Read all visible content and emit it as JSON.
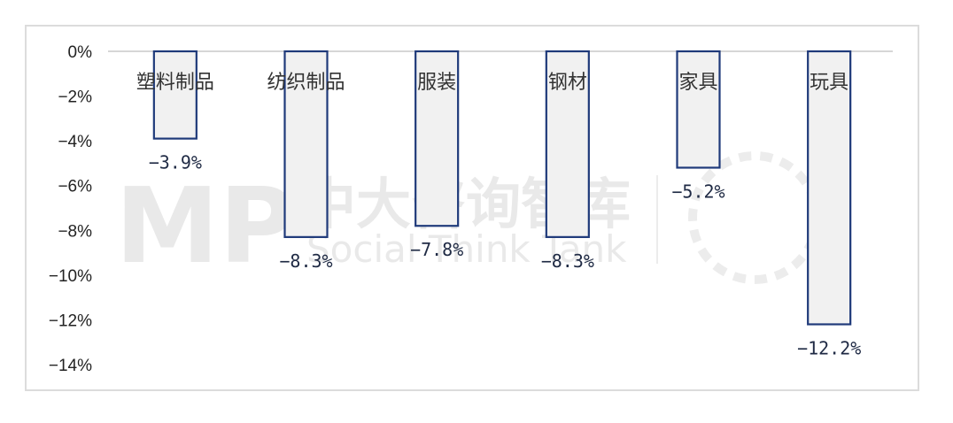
{
  "chart_data": {
    "type": "bar",
    "categories": [
      "塑料制品",
      "纺织制品",
      "服装",
      "钢材",
      "家具",
      "玩具"
    ],
    "values": [
      -3.9,
      -8.3,
      -7.8,
      -8.3,
      -5.2,
      -12.2
    ],
    "value_labels": [
      "−3.9%",
      "−8.3%",
      "−7.8%",
      "−8.3%",
      "−5.2%",
      "−12.2%"
    ],
    "y_ticks": [
      0,
      -2,
      -4,
      -6,
      -8,
      -10,
      -12,
      -14
    ],
    "y_tick_labels": [
      "0%",
      "−2%",
      "−4%",
      "−6%",
      "−8%",
      "−10%",
      "−12%",
      "−14%"
    ],
    "ylim": [
      -14,
      0
    ],
    "grid": false,
    "legend": "none",
    "bar_fill": "#f1f1f1",
    "bar_stroke": "#1f3a7a"
  },
  "watermark": {
    "logo": "MP",
    "name": "中大咨询智库",
    "sub": "Social Think Tank"
  }
}
